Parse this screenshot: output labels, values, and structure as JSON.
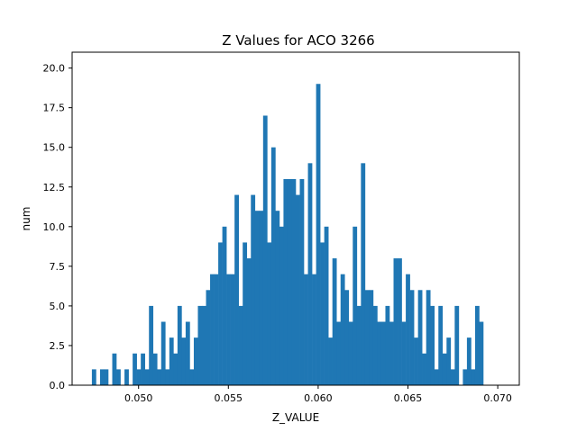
{
  "chart_data": {
    "type": "bar",
    "title": "Z Values for ACO  3266",
    "xlabel": "Z_VALUE",
    "ylabel": "num",
    "xlim": [
      0.0463,
      0.0712
    ],
    "ylim": [
      0,
      21
    ],
    "xticks": [
      0.05,
      0.055,
      0.06,
      0.065,
      0.07
    ],
    "xtick_labels": [
      "0.050",
      "0.055",
      "0.060",
      "0.065",
      "0.070"
    ],
    "yticks": [
      0,
      2.5,
      5,
      7.5,
      10,
      12.5,
      15,
      17.5,
      20
    ],
    "ytick_labels": [
      "0.0",
      "2.5",
      "5.0",
      "7.5",
      "10.0",
      "12.5",
      "15.0",
      "17.5",
      "20.0"
    ],
    "bin_start": 0.0474,
    "bin_width": 0.000227,
    "counts": [
      1,
      0,
      1,
      1,
      0,
      2,
      1,
      0,
      1,
      0,
      2,
      1,
      2,
      1,
      5,
      2,
      1,
      4,
      1,
      3,
      2,
      5,
      3,
      4,
      1,
      3,
      5,
      5,
      6,
      7,
      7,
      9,
      10,
      7,
      7,
      12,
      5,
      9,
      8,
      12,
      11,
      11,
      17,
      9,
      15,
      11,
      10,
      13,
      13,
      13,
      12,
      13,
      7,
      14,
      7,
      19,
      9,
      10,
      3,
      8,
      4,
      7,
      6,
      4,
      10,
      5,
      14,
      6,
      6,
      5,
      4,
      4,
      5,
      4,
      8,
      8,
      4,
      7,
      6,
      3,
      6,
      2,
      6,
      5,
      1,
      5,
      2,
      3,
      1,
      5,
      0,
      1,
      3,
      1,
      5,
      4
    ]
  }
}
